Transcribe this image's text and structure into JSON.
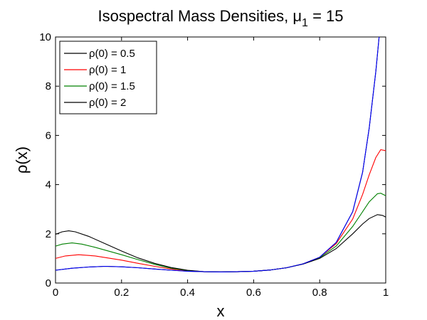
{
  "chart_data": {
    "type": "line",
    "title_main": "Isospectral Mass Densities, μ",
    "title_sub": "1",
    "title_tail": " = 15",
    "xlabel": "x",
    "ylabel": "ρ(x)",
    "xlim": [
      0,
      1
    ],
    "ylim": [
      0,
      10
    ],
    "xticks": [
      "0",
      "0.2",
      "0.4",
      "0.6",
      "0.8",
      "1"
    ],
    "yticks": [
      "0",
      "2",
      "4",
      "6",
      "8",
      "10"
    ],
    "grid": false,
    "legend_placement": "top-left",
    "series": [
      {
        "name": "ρ(0) = 0.5",
        "color": "#000000",
        "points": [
          [
            0,
            0.52
          ],
          [
            0.05,
            0.6
          ],
          [
            0.1,
            0.65
          ],
          [
            0.15,
            0.68
          ],
          [
            0.2,
            0.66
          ],
          [
            0.25,
            0.62
          ],
          [
            0.3,
            0.57
          ],
          [
            0.35,
            0.52
          ],
          [
            0.4,
            0.48
          ],
          [
            0.45,
            0.46
          ],
          [
            0.5,
            0.45
          ],
          [
            0.55,
            0.46
          ],
          [
            0.6,
            0.48
          ],
          [
            0.65,
            0.53
          ],
          [
            0.7,
            0.62
          ],
          [
            0.75,
            0.78
          ],
          [
            0.8,
            1.05
          ],
          [
            0.85,
            1.65
          ],
          [
            0.9,
            2.9
          ],
          [
            0.93,
            4.5
          ],
          [
            0.95,
            6.3
          ],
          [
            0.97,
            8.6
          ],
          [
            0.98,
            10.0
          ]
        ]
      },
      {
        "name": "ρ(0) = 1",
        "color": "#ff0000",
        "points": [
          [
            0,
            1.0
          ],
          [
            0.03,
            1.1
          ],
          [
            0.07,
            1.15
          ],
          [
            0.12,
            1.1
          ],
          [
            0.2,
            0.93
          ],
          [
            0.25,
            0.8
          ],
          [
            0.3,
            0.68
          ],
          [
            0.35,
            0.57
          ],
          [
            0.4,
            0.5
          ],
          [
            0.45,
            0.46
          ],
          [
            0.5,
            0.45
          ],
          [
            0.55,
            0.46
          ],
          [
            0.6,
            0.48
          ],
          [
            0.65,
            0.53
          ],
          [
            0.7,
            0.62
          ],
          [
            0.75,
            0.78
          ],
          [
            0.8,
            1.05
          ],
          [
            0.85,
            1.6
          ],
          [
            0.9,
            2.6
          ],
          [
            0.93,
            3.6
          ],
          [
            0.95,
            4.4
          ],
          [
            0.97,
            5.1
          ],
          [
            0.985,
            5.42
          ],
          [
            1.0,
            5.38
          ]
        ]
      },
      {
        "name": "ρ(0) = 1.5",
        "color": "#008000",
        "points": [
          [
            0,
            1.5
          ],
          [
            0.02,
            1.58
          ],
          [
            0.05,
            1.63
          ],
          [
            0.08,
            1.58
          ],
          [
            0.12,
            1.45
          ],
          [
            0.2,
            1.15
          ],
          [
            0.25,
            0.95
          ],
          [
            0.3,
            0.76
          ],
          [
            0.35,
            0.6
          ],
          [
            0.4,
            0.51
          ],
          [
            0.45,
            0.46
          ],
          [
            0.5,
            0.45
          ],
          [
            0.55,
            0.46
          ],
          [
            0.6,
            0.48
          ],
          [
            0.65,
            0.53
          ],
          [
            0.7,
            0.62
          ],
          [
            0.75,
            0.78
          ],
          [
            0.8,
            1.03
          ],
          [
            0.85,
            1.5
          ],
          [
            0.9,
            2.3
          ],
          [
            0.93,
            2.9
          ],
          [
            0.95,
            3.3
          ],
          [
            0.975,
            3.63
          ],
          [
            0.985,
            3.65
          ],
          [
            1.0,
            3.55
          ]
        ]
      },
      {
        "name": "ρ(0) = 2",
        "color": "#000000",
        "points": [
          [
            0,
            1.98
          ],
          [
            0.02,
            2.08
          ],
          [
            0.04,
            2.12
          ],
          [
            0.06,
            2.08
          ],
          [
            0.1,
            1.9
          ],
          [
            0.15,
            1.6
          ],
          [
            0.2,
            1.3
          ],
          [
            0.25,
            1.02
          ],
          [
            0.3,
            0.8
          ],
          [
            0.35,
            0.63
          ],
          [
            0.4,
            0.52
          ],
          [
            0.45,
            0.46
          ],
          [
            0.5,
            0.45
          ],
          [
            0.55,
            0.46
          ],
          [
            0.6,
            0.48
          ],
          [
            0.65,
            0.53
          ],
          [
            0.7,
            0.62
          ],
          [
            0.75,
            0.77
          ],
          [
            0.8,
            1.0
          ],
          [
            0.85,
            1.4
          ],
          [
            0.9,
            2.0
          ],
          [
            0.93,
            2.4
          ],
          [
            0.95,
            2.62
          ],
          [
            0.975,
            2.78
          ],
          [
            0.99,
            2.75
          ],
          [
            1.0,
            2.68
          ]
        ]
      },
      {
        "name": "",
        "color": "#0000ff",
        "points": [
          [
            0,
            0.52
          ],
          [
            0.05,
            0.6
          ],
          [
            0.1,
            0.65
          ],
          [
            0.15,
            0.68
          ],
          [
            0.2,
            0.66
          ],
          [
            0.25,
            0.62
          ],
          [
            0.3,
            0.57
          ],
          [
            0.35,
            0.52
          ],
          [
            0.4,
            0.48
          ],
          [
            0.45,
            0.46
          ],
          [
            0.5,
            0.45
          ],
          [
            0.55,
            0.46
          ],
          [
            0.6,
            0.48
          ],
          [
            0.65,
            0.53
          ],
          [
            0.7,
            0.62
          ],
          [
            0.75,
            0.78
          ],
          [
            0.8,
            1.05
          ],
          [
            0.85,
            1.65
          ],
          [
            0.9,
            2.9
          ],
          [
            0.93,
            4.5
          ],
          [
            0.95,
            6.3
          ],
          [
            0.97,
            8.6
          ],
          [
            0.98,
            10.0
          ]
        ]
      }
    ]
  }
}
